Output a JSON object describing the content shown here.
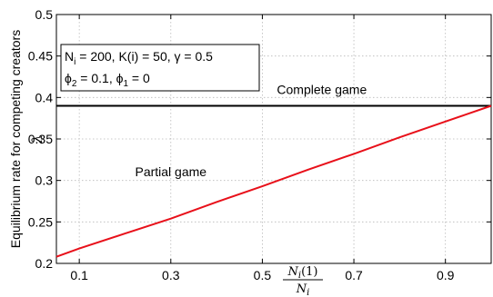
{
  "chart_data": {
    "type": "line",
    "x_ticks": [
      0.1,
      0.3,
      0.5,
      0.7,
      0.9
    ],
    "y_ticks": [
      0.2,
      0.25,
      0.3,
      0.35,
      0.4,
      0.45,
      0.5
    ],
    "x_tick_labels": [
      "0.1",
      "0.3",
      "0.5",
      "0.7",
      "0.9"
    ],
    "y_tick_labels": [
      "0.2",
      "0.25",
      "0.3",
      "0.35",
      "0.4",
      "0.45",
      "0.5"
    ],
    "xlim": [
      0.05,
      1.0
    ],
    "ylim": [
      0.2,
      0.5
    ],
    "grid": true,
    "ylabel": "Equilibrium rate for competing creators",
    "ylabel_symbol": "λ",
    "xlabel_numerator": "N",
    "xlabel_numerator_sub": "i",
    "xlabel_numerator_arg": "(1)",
    "xlabel_denominator": "N",
    "xlabel_denominator_sub": "i",
    "params_box": {
      "line1_parts": [
        "N",
        "i",
        " = 200, K(i) = 50, γ = 0.5"
      ],
      "line2_parts": [
        "ϕ",
        "2",
        " = 0.1, ϕ",
        "1",
        " = 0"
      ]
    },
    "series": [
      {
        "color": "#000000",
        "x": [
          0.05,
          1.0
        ],
        "values": [
          0.39,
          0.39
        ]
      },
      {
        "color": "#e8101a",
        "x": [
          0.05,
          0.1,
          0.2,
          0.3,
          0.4,
          0.5,
          0.6,
          0.7,
          0.8,
          0.9,
          1.0
        ],
        "values": [
          0.208,
          0.218,
          0.236,
          0.254,
          0.274,
          0.293,
          0.313,
          0.332,
          0.352,
          0.371,
          0.39
        ]
      }
    ],
    "annotations": [
      {
        "text": "Complete game",
        "x": 0.63,
        "y": 0.404
      },
      {
        "text": "Partial game",
        "x": 0.3,
        "y": 0.305
      }
    ]
  }
}
